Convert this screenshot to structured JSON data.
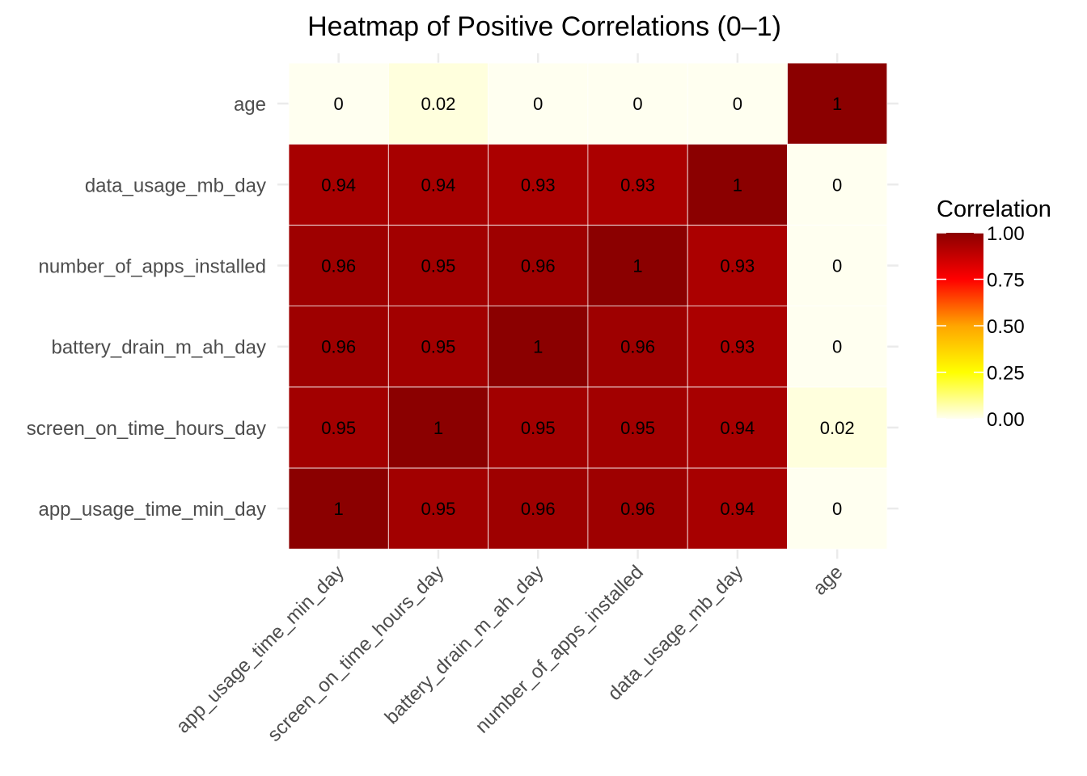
{
  "chart_data": {
    "type": "heatmap",
    "title": "Heatmap of Positive Correlations (0–1)",
    "xlabel": "",
    "ylabel": "",
    "x_categories": [
      "app_usage_time_min_day",
      "screen_on_time_hours_day",
      "battery_drain_m_ah_day",
      "number_of_apps_installed",
      "data_usage_mb_day",
      "age"
    ],
    "y_categories": [
      "app_usage_time_min_day",
      "screen_on_time_hours_day",
      "battery_drain_m_ah_day",
      "number_of_apps_installed",
      "data_usage_mb_day",
      "age"
    ],
    "y_order": "bottom-to-top",
    "values": [
      [
        1,
        0.95,
        0.96,
        0.96,
        0.94,
        0
      ],
      [
        0.95,
        1,
        0.95,
        0.95,
        0.94,
        0.02
      ],
      [
        0.96,
        0.95,
        1,
        0.96,
        0.93,
        0
      ],
      [
        0.96,
        0.95,
        0.96,
        1,
        0.93,
        0
      ],
      [
        0.94,
        0.94,
        0.93,
        0.93,
        1,
        0
      ],
      [
        0,
        0.02,
        0,
        0,
        0,
        1
      ]
    ],
    "cell_labels": [
      [
        "1",
        "0.95",
        "0.96",
        "0.96",
        "0.94",
        "0"
      ],
      [
        "0.95",
        "1",
        "0.95",
        "0.95",
        "0.94",
        "0.02"
      ],
      [
        "0.96",
        "0.95",
        "1",
        "0.96",
        "0.93",
        "0"
      ],
      [
        "0.96",
        "0.95",
        "0.96",
        "1",
        "0.93",
        "0"
      ],
      [
        "0.94",
        "0.94",
        "0.93",
        "0.93",
        "1",
        "0"
      ],
      [
        "0",
        "0.02",
        "0",
        "0",
        "0",
        "1"
      ]
    ],
    "value_range": [
      0,
      1
    ],
    "colorscale": [
      {
        "stop": 0.0,
        "color": "#FFFFF0"
      },
      {
        "stop": 0.25,
        "color": "#FFFF00"
      },
      {
        "stop": 0.5,
        "color": "#FFA500"
      },
      {
        "stop": 0.75,
        "color": "#FF0000"
      },
      {
        "stop": 1.0,
        "color": "#8B0000"
      }
    ],
    "legend": {
      "title": "Correlation",
      "position": "right",
      "ticks": [
        1.0,
        0.75,
        0.5,
        0.25,
        0.0
      ],
      "tick_labels": [
        "1.00",
        "0.75",
        "0.50",
        "0.25",
        "0.00"
      ]
    },
    "grid": true
  }
}
